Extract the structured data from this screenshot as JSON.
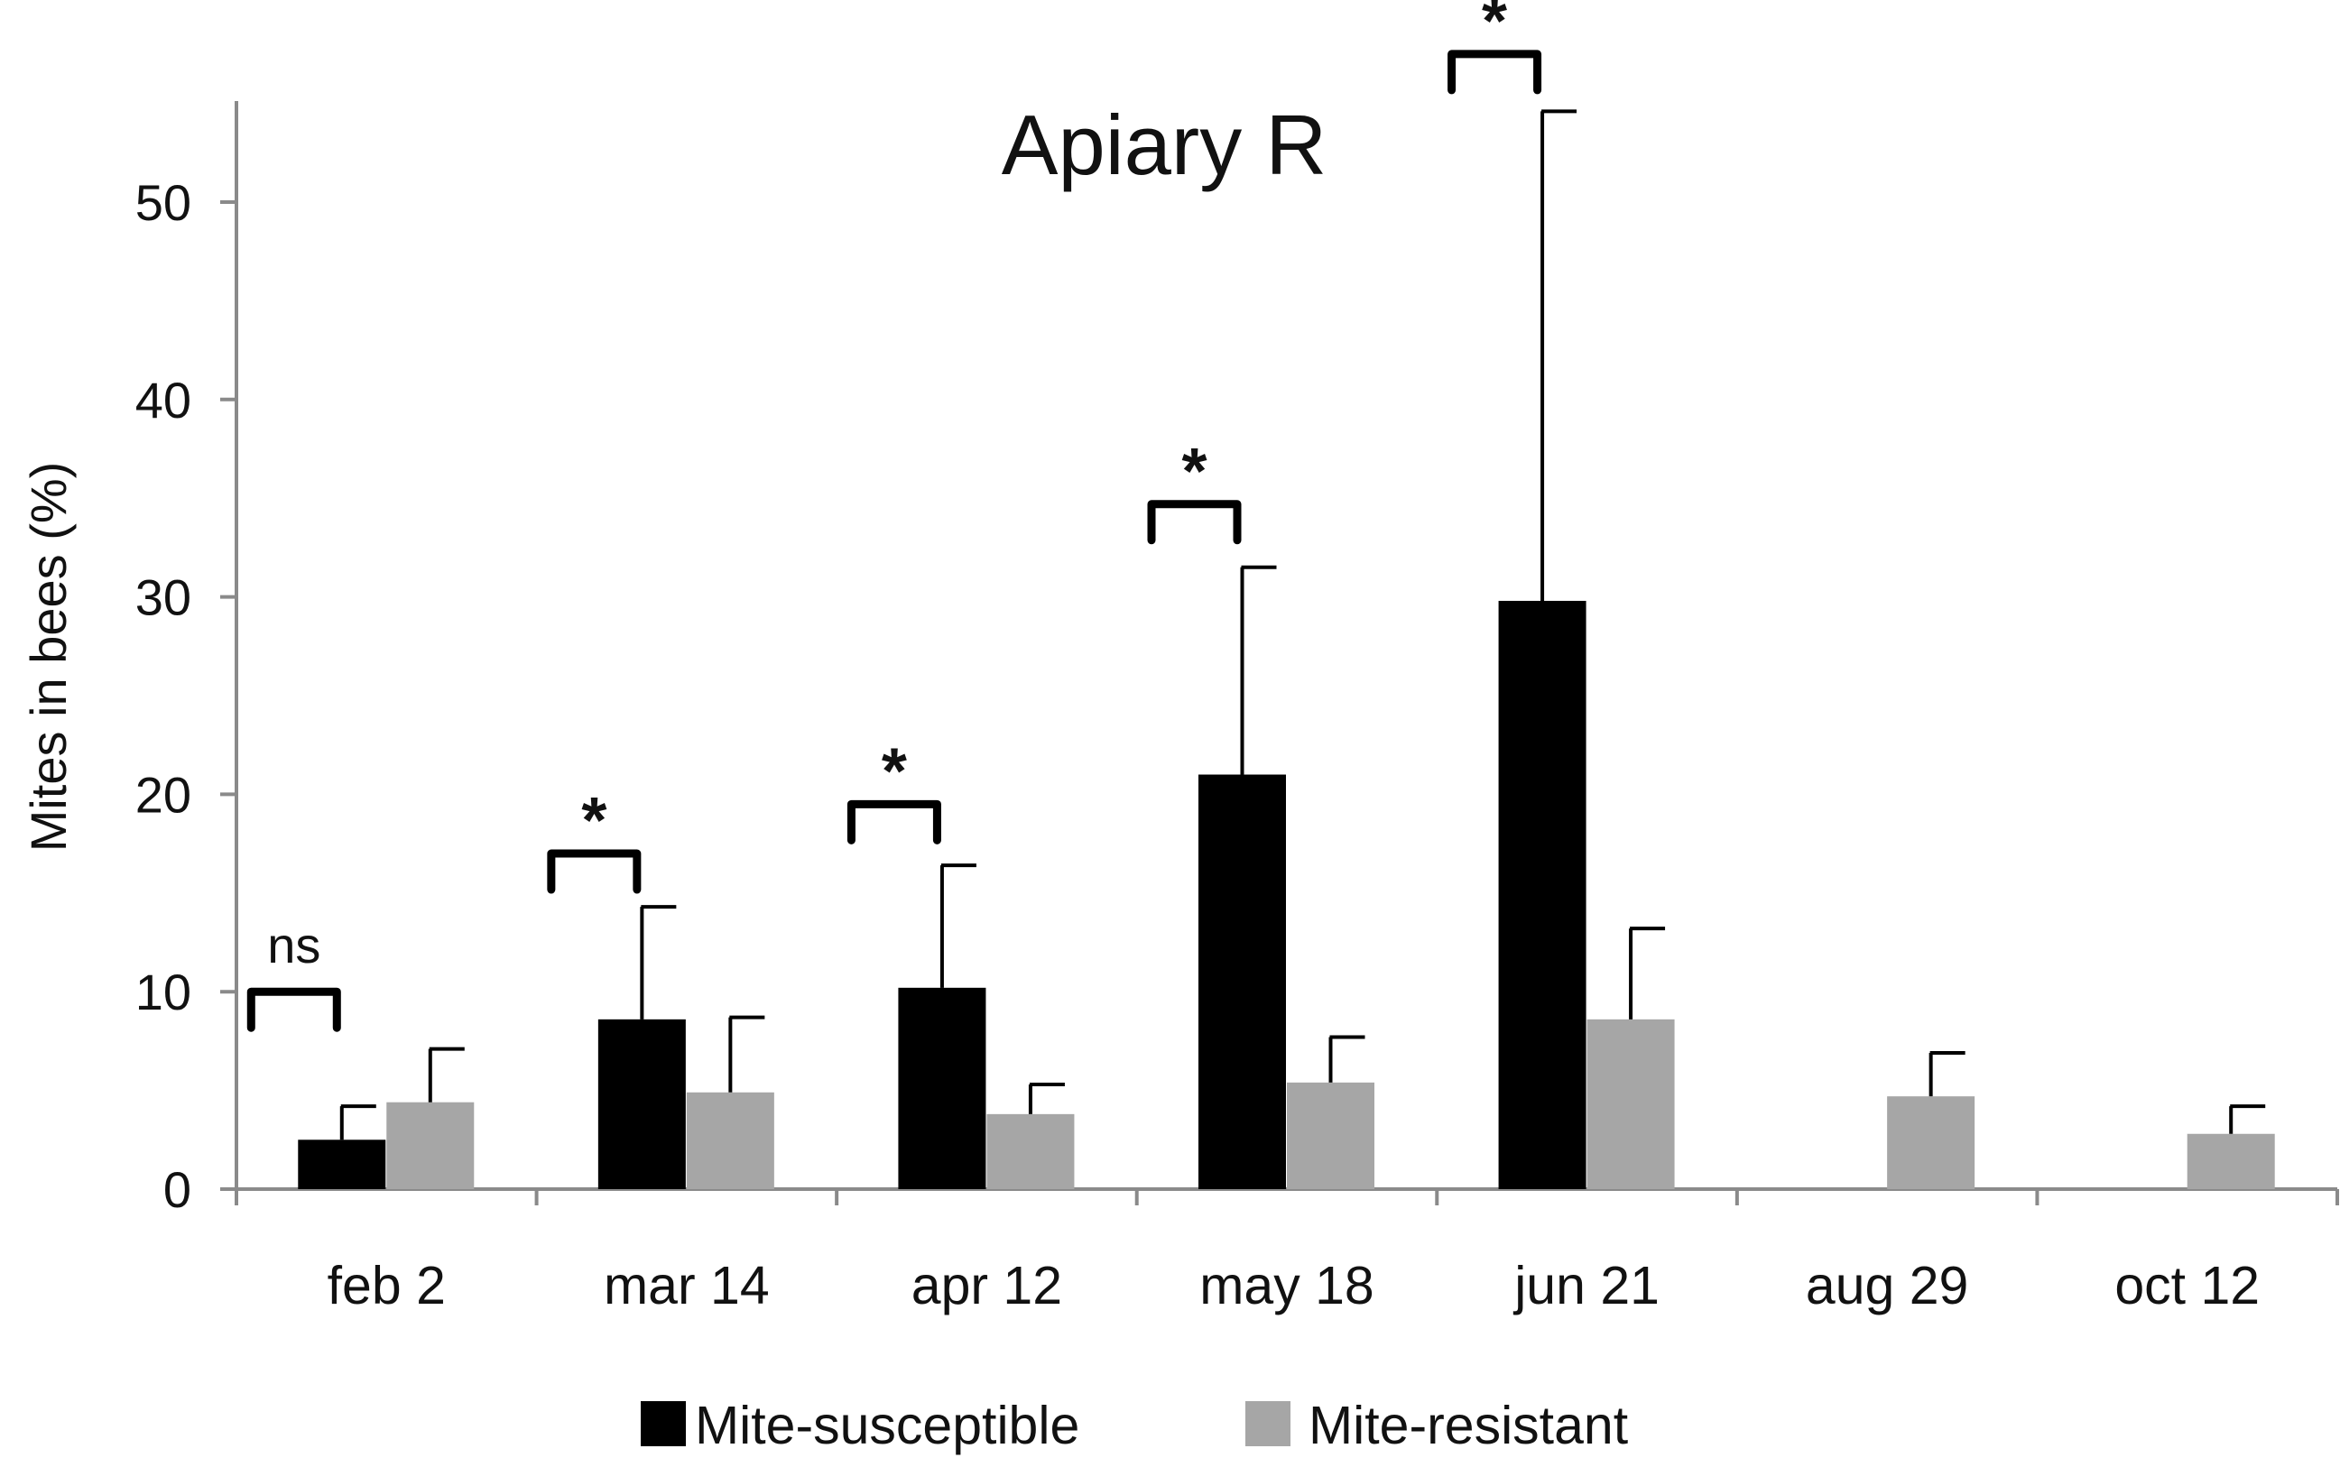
{
  "chart_data": {
    "type": "bar",
    "title": "Apiary R",
    "xlabel": "",
    "ylabel": "Mites in bees (%)",
    "ylim": [
      0,
      55
    ],
    "yticks": [
      "0",
      "10",
      "20",
      "30",
      "40",
      "50"
    ],
    "ytick_values": [
      0,
      10,
      20,
      30,
      40,
      50
    ],
    "categories": [
      "feb 2",
      "mar 14",
      "apr 12",
      "may 18",
      "jun 21",
      "aug 29",
      "oct 12"
    ],
    "series": [
      {
        "name": "Mite-susceptible",
        "color": "#000000",
        "values": [
          2.5,
          8.6,
          10.2,
          21.0,
          29.8,
          null,
          null
        ],
        "error": [
          1.7,
          5.7,
          6.2,
          10.5,
          24.8,
          null,
          null
        ]
      },
      {
        "name": "Mite-resistant",
        "color": "#a6a6a6",
        "values": [
          4.4,
          4.9,
          3.8,
          5.4,
          8.6,
          4.7,
          2.8
        ],
        "error": [
          2.7,
          3.8,
          1.5,
          2.3,
          4.6,
          2.2,
          1.4
        ]
      }
    ],
    "significance": [
      {
        "category": "feb 2",
        "label": "ns",
        "y": 10
      },
      {
        "category": "mar 14",
        "label": "*",
        "y": 17
      },
      {
        "category": "apr 12",
        "label": "*",
        "y": 19.5
      },
      {
        "category": "may 18",
        "label": "*",
        "y": 34.7
      },
      {
        "category": "jun 21",
        "label": "*",
        "y": 57.5
      }
    ],
    "legend": {
      "position": "bottom-center"
    }
  }
}
